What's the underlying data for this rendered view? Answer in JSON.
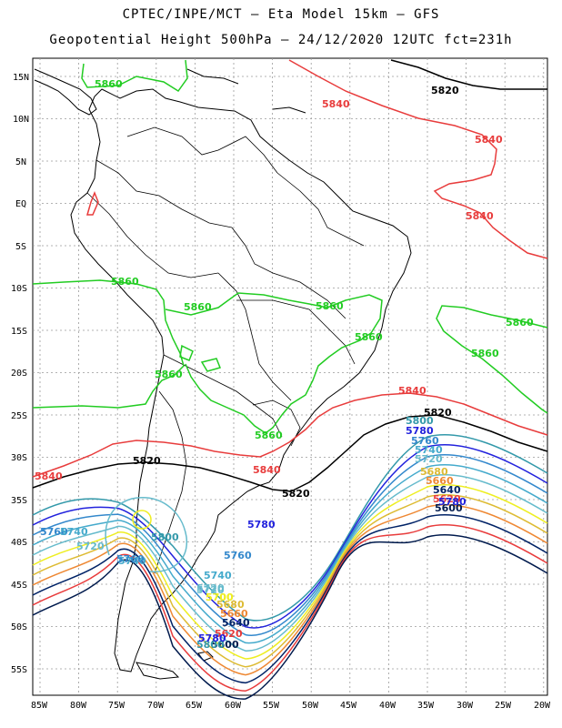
{
  "header": {
    "title_line1": "CPTEC/INPE/MCT –  Eta Model 15km – GFS",
    "title_line2": "Geopotential Height 500hPa – 24/12/2020 12UTC fct=231h"
  },
  "axes": {
    "lat_labels": [
      "15N",
      "10N",
      "5N",
      "EQ",
      "5S",
      "10S",
      "15S",
      "20S",
      "25S",
      "30S",
      "35S",
      "40S",
      "45S",
      "50S",
      "55S"
    ],
    "lon_labels": [
      "85W",
      "80W",
      "75W",
      "70W",
      "65W",
      "60W",
      "55W",
      "50W",
      "45W",
      "40W",
      "35W",
      "30W",
      "25W",
      "20W"
    ]
  },
  "colors": {
    "c5860": "#22cc22",
    "c5840": "#e83c3c",
    "c5820": "#000000",
    "c5800": "#3399aa",
    "c5780": "#2222dd",
    "c5760": "#3388cc",
    "c5740": "#44aacc",
    "c5720": "#66bbcc",
    "c5700": "#eeee22",
    "c5680": "#ddbb33",
    "c5660": "#ee8833",
    "c5640": "#002266",
    "c5620": "#e83c3c",
    "c5600": "#001a4d"
  },
  "contour_labels": {
    "green": [
      "5860",
      "5860",
      "5860",
      "5860",
      "5860",
      "5860",
      "5860",
      "5860",
      "5860"
    ],
    "red": [
      "5840",
      "5840",
      "5840",
      "5840",
      "5840",
      "5840"
    ],
    "black": [
      "5820",
      "5820",
      "5820",
      "5820"
    ],
    "southern": [
      "5800",
      "5780",
      "5760",
      "5740",
      "5720",
      "5680",
      "5660",
      "5640",
      "5620",
      "5600",
      "5780",
      "5740",
      "5720",
      "5700",
      "5680",
      "5660",
      "5640",
      "5620",
      "5600",
      "5800",
      "5780",
      "5760",
      "5740",
      "5720",
      "5760",
      "5800",
      "5780",
      "5760",
      "5740",
      "5720",
      "5700"
    ]
  }
}
